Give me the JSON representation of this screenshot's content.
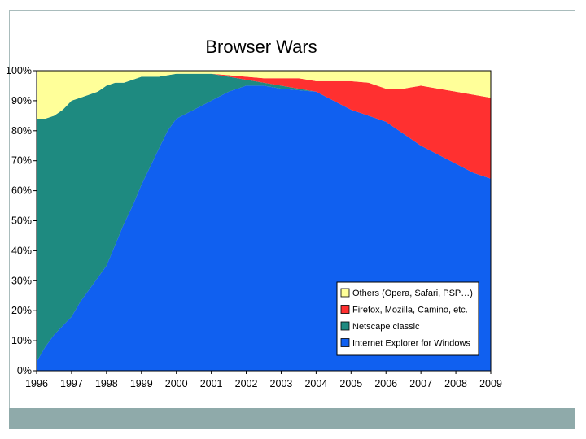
{
  "chart_data": {
    "type": "area",
    "stacked": "percent",
    "title": "Browser Wars",
    "xlabel": "",
    "ylabel": "",
    "ylim": [
      0,
      100
    ],
    "yticks": [
      "0%",
      "10%",
      "20%",
      "30%",
      "40%",
      "50%",
      "60%",
      "70%",
      "80%",
      "90%",
      "100%"
    ],
    "xlim": [
      1996,
      2009
    ],
    "xticks": [
      "1996",
      "1997",
      "1998",
      "1999",
      "2000",
      "2001",
      "2002",
      "2003",
      "2004",
      "2005",
      "2006",
      "2007",
      "2008",
      "2009"
    ],
    "x": [
      1996,
      1996.25,
      1996.5,
      1996.75,
      1997,
      1997.25,
      1997.5,
      1997.75,
      1998,
      1998.25,
      1998.5,
      1998.75,
      1999,
      1999.25,
      1999.5,
      1999.75,
      2000,
      2000.5,
      2001,
      2001.5,
      2002,
      2002.5,
      2003,
      2003.5,
      2004,
      2004.5,
      2005,
      2005.5,
      2006,
      2006.5,
      2007,
      2007.5,
      2008,
      2008.5,
      2009
    ],
    "series": [
      {
        "name": "Internet Explorer for Windows",
        "color": "#1060f0",
        "values": [
          3,
          8,
          12,
          15,
          18,
          23,
          27,
          31,
          35,
          42,
          49,
          55,
          62,
          68,
          74,
          80,
          84,
          87,
          90,
          93,
          95,
          95,
          94,
          93.5,
          93,
          90,
          87,
          85,
          83,
          79,
          75,
          72,
          69,
          66,
          64
        ]
      },
      {
        "name": "Netscape classic",
        "color": "#1e8a80",
        "values": [
          81,
          76,
          73,
          72,
          72,
          68,
          65,
          62,
          60,
          54,
          47,
          42,
          36,
          30,
          24,
          18.5,
          15,
          12,
          9,
          5,
          2,
          1,
          1,
          0.5,
          0,
          0,
          0,
          0,
          0,
          0,
          0,
          0,
          0,
          0,
          0
        ]
      },
      {
        "name": "Firefox, Mozilla, Camino, etc.",
        "color": "#ff3030",
        "values": [
          0,
          0,
          0,
          0,
          0,
          0,
          0,
          0,
          0,
          0,
          0,
          0,
          0,
          0,
          0,
          0,
          0,
          0,
          0,
          0.5,
          1,
          1.5,
          2.5,
          3.5,
          3.5,
          6.5,
          9.5,
          11,
          11,
          15,
          20,
          22,
          24,
          26,
          27
        ]
      },
      {
        "name": "Others (Opera, Safari, PSP…)",
        "color": "#ffff99",
        "values": [
          16,
          16,
          15,
          13,
          10,
          9,
          8,
          7,
          5,
          4,
          4,
          3,
          2,
          2,
          2,
          1.5,
          1,
          1,
          1,
          1.5,
          2,
          2.5,
          2.5,
          2.5,
          3.5,
          3.5,
          3.5,
          4,
          6,
          6,
          5,
          6,
          7,
          8,
          9
        ]
      }
    ],
    "legend": {
      "position": "inside-bottom-right",
      "order": [
        "Others (Opera, Safari, PSP…)",
        "Firefox, Mozilla, Camino, etc.",
        "Netscape classic",
        "Internet Explorer for Windows"
      ]
    },
    "grid": false
  }
}
